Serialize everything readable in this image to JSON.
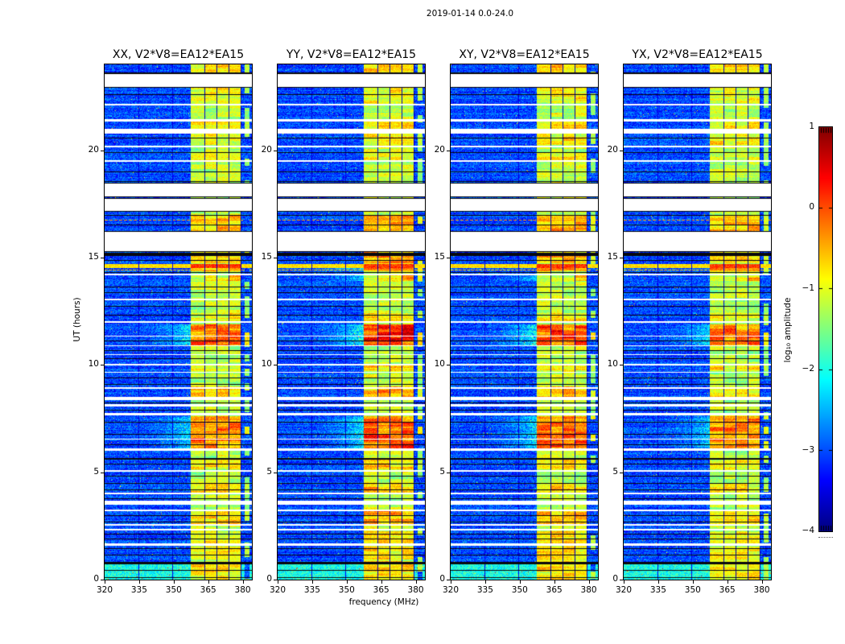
{
  "chart_data": {
    "type": "heatmap",
    "title": "2019-01-14 0.0-24.0",
    "xlabel": "frequency (MHz)",
    "ylabel": "UT (hours)",
    "xlim": [
      320,
      384
    ],
    "ylim": [
      0,
      24
    ],
    "xticks": [
      320,
      335,
      350,
      365,
      380
    ],
    "yticks": [
      0,
      5,
      10,
      15,
      20
    ],
    "grid": false,
    "panels": [
      {
        "id": "xx",
        "label": "XX, V2*V8=EA12*EA15",
        "seed": 11,
        "gain": 1.0
      },
      {
        "id": "yy",
        "label": "YY, V2*V8=EA12*EA15",
        "seed": 23,
        "gain": 1.18
      },
      {
        "id": "xy",
        "label": "XY, V2*V8=EA12*EA15",
        "seed": 37,
        "gain": 1.12
      },
      {
        "id": "yx",
        "label": "YX, V2*V8=EA12*EA15",
        "seed": 53,
        "gain": 0.92
      }
    ],
    "colorbar": {
      "label": "log₁₀ amplitude",
      "colormap": "jet",
      "vmin": -4,
      "vmax": 1,
      "tick_values": [
        1,
        0,
        -1,
        -2,
        -3,
        -4
      ],
      "tick_labels": [
        "1",
        "0",
        "−1",
        "−2",
        "−3",
        "−4"
      ]
    },
    "spectrogram": {
      "noise_floor_log": -3.45,
      "noise_spread": 0.85,
      "rfi_band": {
        "f_start": 357.3,
        "f_end": 379.4,
        "base_level_log": -1.5,
        "spread": 0.55,
        "column_edges_mhz": [
          357.3,
          363.6,
          368.9,
          374.2,
          379.4
        ]
      },
      "edge_band": {
        "f_start": 380.9,
        "f_end": 383.0,
        "level_log": -1.75,
        "occupancy": 0.5
      },
      "subband_line_freqs_mhz": [
        334.8,
        349.7
      ],
      "data_gaps_ut": [
        [
          22.95,
          23.55
        ],
        [
          22.08,
          22.16
        ],
        [
          21.34,
          21.45
        ],
        [
          20.78,
          21.0
        ],
        [
          20.14,
          20.21
        ],
        [
          19.46,
          19.54
        ],
        [
          17.85,
          18.45
        ],
        [
          17.18,
          17.75
        ],
        [
          15.3,
          16.2
        ],
        [
          14.18,
          14.25
        ],
        [
          13.0,
          13.09
        ],
        [
          11.96,
          12.04
        ],
        [
          11.33,
          11.36
        ],
        [
          10.86,
          10.9
        ],
        [
          10.46,
          10.5
        ],
        [
          9.98,
          10.05
        ],
        [
          9.64,
          9.68
        ],
        [
          8.89,
          8.96
        ],
        [
          8.36,
          8.51
        ],
        [
          8.06,
          8.18
        ],
        [
          7.65,
          7.76
        ],
        [
          6.53,
          6.56
        ],
        [
          6.0,
          6.11
        ],
        [
          5.03,
          5.1
        ],
        [
          3.98,
          4.05
        ],
        [
          3.49,
          3.68
        ],
        [
          3.19,
          3.26
        ],
        [
          2.51,
          2.59
        ],
        [
          2.29,
          2.36
        ],
        [
          1.58,
          1.69
        ]
      ],
      "scan_lines_ut": [
        {
          "ut": 23.62,
          "px": 1
        },
        {
          "ut": 22.6,
          "px": 1
        },
        {
          "ut": 20.6,
          "px": 1
        },
        {
          "ut": 19.9,
          "px": 1
        },
        {
          "ut": 19.0,
          "px": 1
        },
        {
          "ut": 18.55,
          "px": 1
        },
        {
          "ut": 17.0,
          "px": 1
        },
        {
          "ut": 16.55,
          "px": 1
        },
        {
          "ut": 15.24,
          "px": 4
        },
        {
          "ut": 14.9,
          "px": 1
        },
        {
          "ut": 14.32,
          "px": 1
        },
        {
          "ut": 13.65,
          "px": 1
        },
        {
          "ut": 13.4,
          "px": 1
        },
        {
          "ut": 12.75,
          "px": 1
        },
        {
          "ut": 12.35,
          "px": 1
        },
        {
          "ut": 11.15,
          "px": 1
        },
        {
          "ut": 10.7,
          "px": 1
        },
        {
          "ut": 10.3,
          "px": 1
        },
        {
          "ut": 9.4,
          "px": 1
        },
        {
          "ut": 9.1,
          "px": 1
        },
        {
          "ut": 8.25,
          "px": 1
        },
        {
          "ut": 7.9,
          "px": 1
        },
        {
          "ut": 7.35,
          "px": 1
        },
        {
          "ut": 6.8,
          "px": 1
        },
        {
          "ut": 6.3,
          "px": 1
        },
        {
          "ut": 5.68,
          "px": 2
        },
        {
          "ut": 5.4,
          "px": 1
        },
        {
          "ut": 4.85,
          "px": 1
        },
        {
          "ut": 4.5,
          "px": 1
        },
        {
          "ut": 4.2,
          "px": 1
        },
        {
          "ut": 3.8,
          "px": 1
        },
        {
          "ut": 3.0,
          "px": 1
        },
        {
          "ut": 2.7,
          "px": 1
        },
        {
          "ut": 2.15,
          "px": 1
        },
        {
          "ut": 1.9,
          "px": 1
        },
        {
          "ut": 1.45,
          "px": 1
        },
        {
          "ut": 1.15,
          "px": 1
        },
        {
          "ut": 0.84,
          "px": 3
        },
        {
          "ut": 0.45,
          "px": 1
        },
        {
          "ut": 0.1,
          "px": 1
        }
      ],
      "band_events_ut": [
        [
          23.05,
          24.0,
          0.35
        ],
        [
          22.2,
          22.95,
          0.22
        ],
        [
          21.0,
          21.35,
          0.3
        ],
        [
          20.25,
          20.78,
          0.25
        ],
        [
          19.55,
          19.9,
          0.2
        ],
        [
          16.2,
          17.0,
          0.5
        ],
        [
          14.75,
          15.3,
          0.45
        ],
        [
          14.38,
          14.52,
          0.55
        ],
        [
          13.9,
          14.18,
          0.6,
          374
        ],
        [
          12.05,
          12.4,
          0.3
        ],
        [
          10.9,
          11.9,
          0.85
        ],
        [
          9.7,
          9.98,
          0.3
        ],
        [
          8.52,
          9.0,
          0.45
        ],
        [
          6.12,
          7.6,
          0.7
        ],
        [
          5.12,
          5.6,
          0.3
        ],
        [
          4.06,
          4.5,
          0.32
        ],
        [
          2.6,
          3.18,
          0.4
        ],
        [
          1.7,
          2.25,
          0.28
        ],
        [
          0.95,
          1.55,
          0.28
        ],
        [
          0.0,
          0.85,
          0.3
        ]
      ],
      "features": {
        "bright_stripe_ut": [
          14.52,
          14.7
        ],
        "orange_line_ut": 14.44,
        "red_dotted_line_ut": 16.75,
        "elevated_rows_ut": [
          0.0,
          0.82
        ]
      }
    }
  }
}
